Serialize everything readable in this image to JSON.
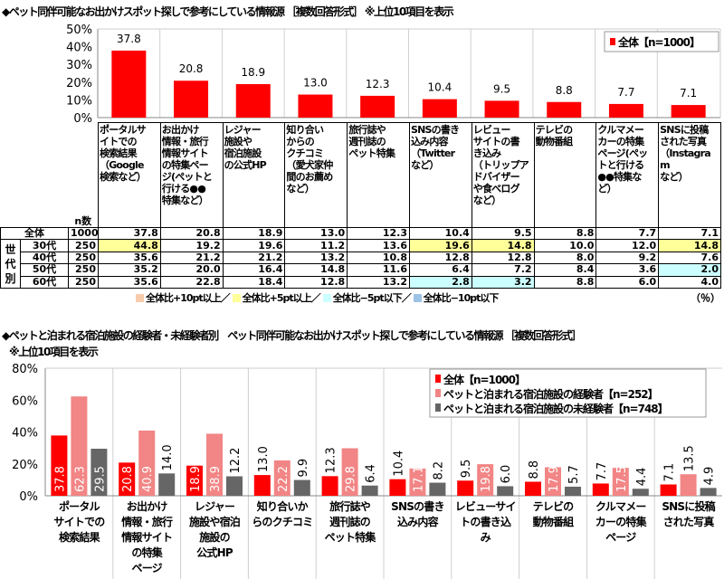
{
  "colors": {
    "total": "#ff0000",
    "experienced": "#f28585",
    "inexperienced": "#666666",
    "plus10": "#f8cbad",
    "plus5": "#ffff99",
    "minus5": "#ccffff",
    "minus10": "#9dc3e6"
  },
  "chart_data": [
    {
      "type": "bar",
      "title": "◆ペット同伴可能なお出かけスポット探しで参考にしている情報源 ［複数回答形式］ ※上位10項目を表示",
      "categories": [
        "ポータルサイトでの検索結果（Google検索など）",
        "お出かけ情報・旅行情報サイトの特集ページ(ペットと行ける●●特集など）",
        "レジャー施設や宿泊施設の公式HP",
        "知り合いからのクチコミ（愛犬家仲間のお薦めなど）",
        "旅行誌や週刊誌のペット特集",
        "SNSの書き込み内容（Twitterなど）",
        "レビューサイトの書き込み（トリップアドバイザーや食べログなど）",
        "テレビの動物番組",
        "クルマメーカーの特集ページ(ペットと行ける●●特集など）",
        "SNSに投稿された写真（Instagramなど）"
      ],
      "series": [
        {
          "name": "全体【n=1000】",
          "values": [
            37.8,
            20.8,
            18.9,
            13.0,
            12.3,
            10.4,
            9.5,
            8.8,
            7.7,
            7.1
          ]
        }
      ],
      "yticks": [
        "0%",
        "10%",
        "20%",
        "30%",
        "40%",
        "50%"
      ],
      "ylim": [
        0,
        50
      ],
      "legend": "top-right",
      "grid": "vertical"
    },
    {
      "type": "bar",
      "title": "◆ペットと泊まれる宿泊施設の経験者・未経験者別　ペット同伴可能なお出かけスポット探しで参考にしている情報源 ［複数回答形式］",
      "subtitle": "※上位10項目を表示",
      "categories": [
        "ポータル\nサイトでの\n検索結果",
        "お出かけ\n情報・旅行\n情報サイト\nの特集\nページ",
        "レジャー\n施設や宿泊\n施設の\n公式HP",
        "知り合いか\nらのクチコミ",
        "旅行誌や\n週刊誌の\nペット特集",
        "SNSの書き\n込み内容",
        "レビューサイ\nトの書き込\nみ",
        "テレビの\n動物番組",
        "クルマメー\nカーの特集\nページ",
        "SNSに投稿\nされた写真"
      ],
      "series": [
        {
          "name": "全体【n=1000】",
          "values": [
            37.8,
            20.8,
            18.9,
            13.0,
            12.3,
            10.4,
            9.5,
            8.8,
            7.7,
            7.1
          ]
        },
        {
          "name": "ペットと泊まれる宿泊施設の経験者【n=252】",
          "values": [
            62.3,
            40.9,
            38.9,
            22.2,
            29.8,
            17.1,
            19.8,
            17.9,
            17.5,
            13.5
          ]
        },
        {
          "name": "ペットと泊まれる宿泊施設の未経験者【n=748】",
          "values": [
            29.5,
            14.0,
            12.2,
            9.9,
            6.4,
            8.2,
            6.0,
            5.7,
            4.4,
            4.9
          ]
        }
      ],
      "yticks": [
        "0%",
        "20%",
        "40%",
        "60%",
        "80%"
      ],
      "ylim": [
        0,
        80
      ],
      "legend": "top-right",
      "grid": "vertical"
    }
  ],
  "table": {
    "n_header": "n数",
    "group_label": "世\n代\n別",
    "headers": [
      "ポータルサ\nイトでの\n検索結果\n（Google\n検索など）",
      "お出かけ\n情報・旅行\n情報サイト\nの特集ペー\nジ(ペットと\n行ける●●\n特集など）",
      "レジャー\n施設や\n宿泊施設\nの公式HP",
      "知り合い\nからの\nクチコミ\n（愛犬家仲\n間のお薦め\nなど）",
      "旅行誌や\n週刊誌の\nペット特集",
      "SNSの書き\n込み内容\n（Twitter\nなど）",
      "レビュー\nサイトの書\nき込み\n（トリップア\nドバイザー\nや食べログ\nなど）",
      "テレビの\n動物番組",
      "クルマメー\nカーの特集\nページ(ペッ\nトと行ける\n●●特集な\nど）",
      "SNSに投稿\nされた写真\n（Instagram\nなど）"
    ],
    "rows": [
      {
        "label": "全体",
        "n": "1000",
        "values": [
          "37.8",
          "20.8",
          "18.9",
          "13.0",
          "12.3",
          "10.4",
          "9.5",
          "8.8",
          "7.7",
          "7.1"
        ],
        "marks": [
          "",
          "",
          "",
          "",
          "",
          "",
          "",
          "",
          "",
          ""
        ]
      },
      {
        "label": "30代",
        "n": "250",
        "values": [
          "44.8",
          "19.2",
          "19.6",
          "11.2",
          "13.6",
          "19.6",
          "14.8",
          "10.0",
          "12.0",
          "14.8"
        ],
        "marks": [
          "y",
          "",
          "",
          "",
          "",
          "y",
          "y",
          "",
          "",
          "y"
        ]
      },
      {
        "label": "40代",
        "n": "250",
        "values": [
          "35.6",
          "21.2",
          "21.2",
          "13.2",
          "10.8",
          "12.8",
          "12.8",
          "8.0",
          "9.2",
          "7.6"
        ],
        "marks": [
          "",
          "",
          "",
          "",
          "",
          "",
          "",
          "",
          "",
          ""
        ]
      },
      {
        "label": "50代",
        "n": "250",
        "values": [
          "35.2",
          "20.0",
          "16.4",
          "14.8",
          "11.6",
          "6.4",
          "7.2",
          "8.4",
          "3.6",
          "2.0"
        ],
        "marks": [
          "",
          "",
          "",
          "",
          "",
          "",
          "",
          "",
          "",
          "c"
        ]
      },
      {
        "label": "60代",
        "n": "250",
        "values": [
          "35.6",
          "22.8",
          "18.4",
          "12.8",
          "13.2",
          "2.8",
          "3.2",
          "8.8",
          "6.0",
          "4.0"
        ],
        "marks": [
          "",
          "",
          "",
          "",
          "",
          "c",
          "c",
          "",
          "",
          ""
        ]
      }
    ],
    "legend": [
      "全体比+10pt以上／",
      "全体比+5pt以上／",
      "全体比−5pt以下／",
      "全体比−10pt以下"
    ],
    "unit": "（％）"
  }
}
